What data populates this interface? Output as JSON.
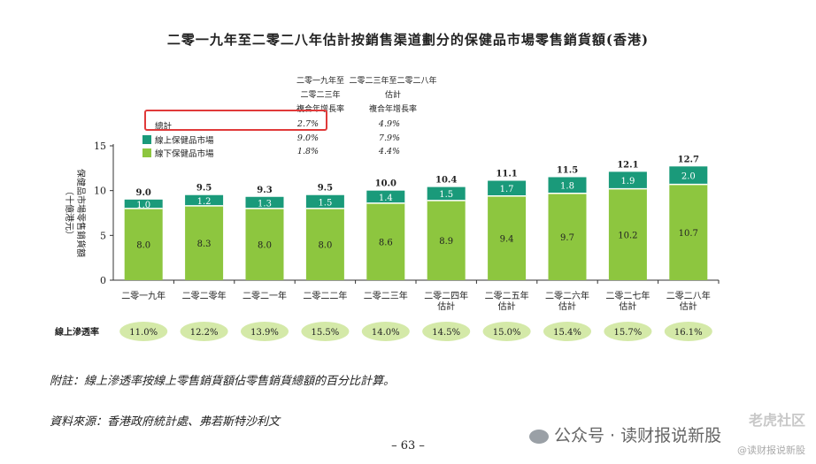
{
  "title": "二零一九年至二零二八年估計按銷售渠道劃分的保健品市場零售銷貨額(香港)",
  "stats_table": {
    "col1_header": [
      "二零一九年至",
      "二零二三年",
      "複合年增長率"
    ],
    "col2_header": [
      "二零二三年至二零二八年",
      "估計",
      "複合年增長率"
    ],
    "rows": [
      {
        "label": "總計",
        "v1": "2.7%",
        "v2": "4.9%"
      },
      {
        "label": "線上保健品市場",
        "v1": "9.0%",
        "v2": "7.9%"
      },
      {
        "label": "線下保健品市場",
        "v1": "1.8%",
        "v2": "4.4%"
      }
    ]
  },
  "colors": {
    "online": "#1a9a7a",
    "offline": "#8dc63f",
    "pill": "#d4e9a8",
    "highlight": "#e03a3a"
  },
  "chart_data": {
    "type": "bar",
    "stacked": true,
    "categories": [
      "二零一九年",
      "二零二零年",
      "二零二一年",
      "二零二二年",
      "二零二三年",
      "二零二四年\n估計",
      "二零二五年\n估計",
      "二零二六年\n估計",
      "二零二七年\n估計",
      "二零二八年\n估計"
    ],
    "series": [
      {
        "name": "線下保健品市場",
        "values": [
          8.0,
          8.3,
          8.0,
          8.0,
          8.6,
          8.9,
          9.4,
          9.7,
          10.2,
          10.7
        ]
      },
      {
        "name": "線上保健品市場",
        "values": [
          1.0,
          1.2,
          1.3,
          1.5,
          1.4,
          1.5,
          1.7,
          1.8,
          1.9,
          2.0
        ]
      }
    ],
    "totals": [
      "9.0",
      "9.5",
      "9.3",
      "9.5",
      "10.0",
      "10.4",
      "11.1",
      "11.5",
      "12.1",
      "12.7"
    ],
    "ylabel": "保健品市場零售銷貨額\n（十億港元）",
    "ylim": [
      0,
      15
    ],
    "yticks": [
      0,
      5,
      10,
      15
    ],
    "penetration_label": "線上滲透率",
    "penetration": [
      "11.0%",
      "12.2%",
      "13.9%",
      "15.5%",
      "14.0%",
      "14.5%",
      "15.0%",
      "15.4%",
      "15.7%",
      "16.1%"
    ]
  },
  "footnote": "附註：線上滲透率按線上零售銷貨額佔零售銷貨總額的百分比計算。",
  "source": "資料來源：香港政府統計處、弗若斯特沙利文",
  "page_number": "– 63 –",
  "watermark": "公众号 · 读财报说新股",
  "watermark_corner": "老虎社区",
  "watermark_handle": "@读财报说新股"
}
